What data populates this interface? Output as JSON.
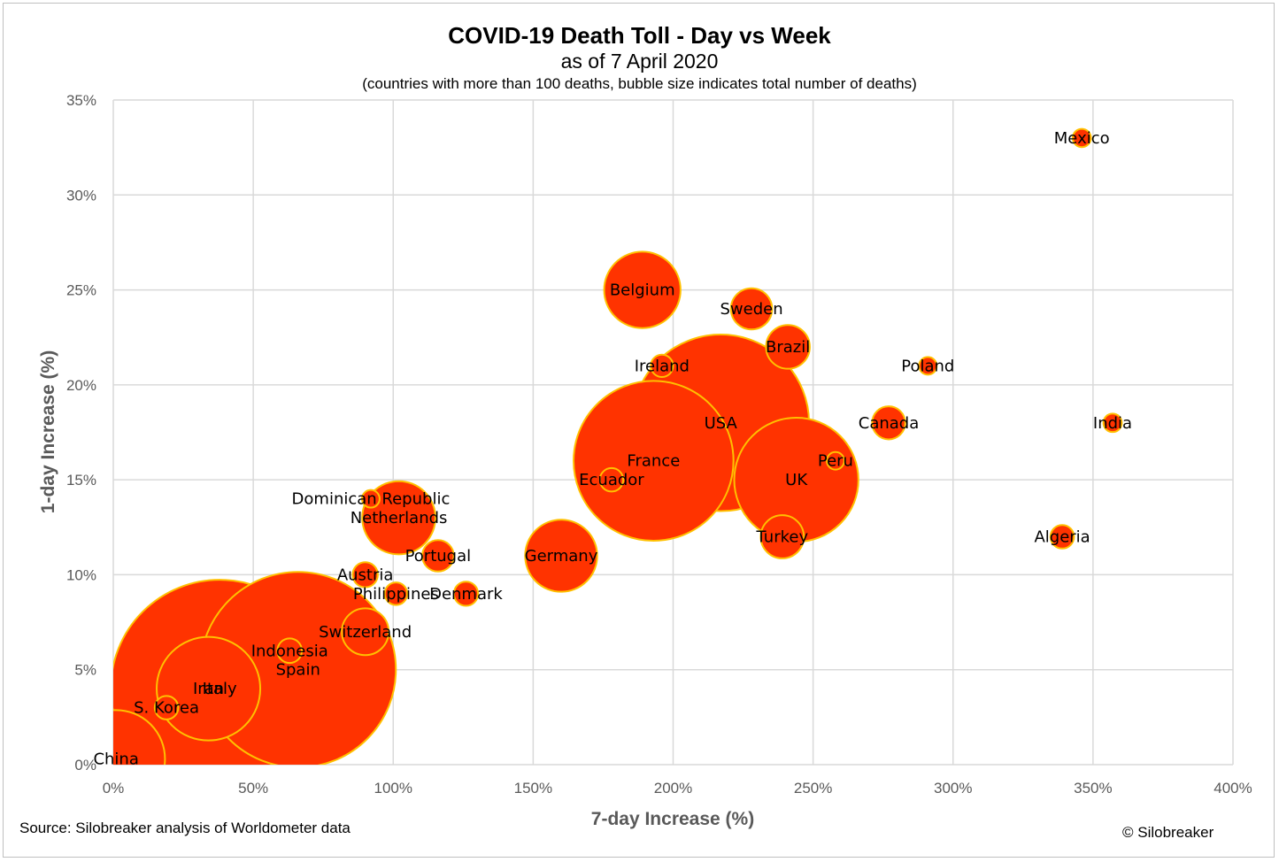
{
  "chart_data": {
    "type": "scatter",
    "subtype": "bubble",
    "title": "COVID-19 Death Toll - Day vs Week",
    "subtitle": "as of 7 April 2020",
    "note": "(countries with more than 100 deaths, bubble size indicates total number of deaths)",
    "xlabel": "7-day Increase (%)",
    "ylabel": "1-day Increase (%)",
    "xlim": [
      0,
      400
    ],
    "ylim": [
      0,
      35
    ],
    "xticks": [
      0,
      50,
      100,
      150,
      200,
      250,
      300,
      350,
      400
    ],
    "yticks": [
      0,
      5,
      10,
      15,
      20,
      25,
      30,
      35
    ],
    "xtick_labels": [
      "0%",
      "50%",
      "100%",
      "150%",
      "200%",
      "250%",
      "300%",
      "350%",
      "400%"
    ],
    "ytick_labels": [
      "0%",
      "5%",
      "10%",
      "15%",
      "20%",
      "25%",
      "30%",
      "35%"
    ],
    "grid": true,
    "bubble_fill": "#ff3300",
    "bubble_stroke": "#ffc000",
    "bubble_size_encoding": "area proportional to total deaths (relative)",
    "points": [
      {
        "label": "China",
        "x": 1,
        "y": 0.3,
        "size": 3331
      },
      {
        "label": "Italy",
        "x": 38,
        "y": 4,
        "size": 16523
      },
      {
        "label": "Spain",
        "x": 66,
        "y": 5,
        "size": 13341
      },
      {
        "label": "USA",
        "x": 217,
        "y": 18,
        "size": 10870
      },
      {
        "label": "France",
        "x": 193,
        "y": 16,
        "size": 8911
      },
      {
        "label": "UK",
        "x": 244,
        "y": 15,
        "size": 5373
      },
      {
        "label": "Iran",
        "x": 34,
        "y": 4,
        "size": 3739
      },
      {
        "label": "Germany",
        "x": 160,
        "y": 11,
        "size": 1810
      },
      {
        "label": "Belgium",
        "x": 189,
        "y": 25,
        "size": 2035
      },
      {
        "label": "Netherlands",
        "x": 102,
        "y": 13,
        "size": 1867
      },
      {
        "label": "Switzerland",
        "x": 90,
        "y": 7,
        "size": 765
      },
      {
        "label": "Turkey",
        "x": 239,
        "y": 12,
        "size": 649
      },
      {
        "label": "Brazil",
        "x": 241,
        "y": 22,
        "size": 667
      },
      {
        "label": "Sweden",
        "x": 228,
        "y": 24,
        "size": 591
      },
      {
        "label": "Portugal",
        "x": 116,
        "y": 11,
        "size": 345
      },
      {
        "label": "Canada",
        "x": 277,
        "y": 18,
        "size": 381
      },
      {
        "label": "Austria",
        "x": 90,
        "y": 10,
        "size": 220
      },
      {
        "label": "Indonesia",
        "x": 63,
        "y": 6,
        "size": 209
      },
      {
        "label": "Ireland",
        "x": 196,
        "y": 21,
        "size": 174
      },
      {
        "label": "S. Korea",
        "x": 19,
        "y": 3,
        "size": 192
      },
      {
        "label": "Ecuador",
        "x": 178,
        "y": 15,
        "size": 191
      },
      {
        "label": "Denmark",
        "x": 126,
        "y": 9,
        "size": 203
      },
      {
        "label": "Philippines",
        "x": 101,
        "y": 9,
        "size": 177
      },
      {
        "label": "Algeria",
        "x": 339,
        "y": 12,
        "size": 193
      },
      {
        "label": "Peru",
        "x": 258,
        "y": 16,
        "size": 107
      },
      {
        "label": "Dominican Republic",
        "x": 92,
        "y": 14,
        "size": 108
      },
      {
        "label": "India",
        "x": 357,
        "y": 18,
        "size": 118
      },
      {
        "label": "Poland",
        "x": 291,
        "y": 21,
        "size": 109
      },
      {
        "label": "Mexico",
        "x": 346,
        "y": 33,
        "size": 116
      }
    ]
  },
  "footer": {
    "source": "Source: Silobreaker analysis of Worldometer data",
    "copyright": "© Silobreaker"
  }
}
